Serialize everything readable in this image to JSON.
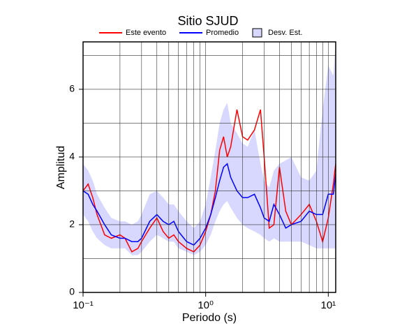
{
  "chart_data": {
    "type": "line",
    "title": "Sitio SJUD",
    "x_label": "Periodo (s)",
    "y_label": "Amplitud",
    "xscale": "log",
    "xlim": [
      0.1,
      11.5
    ],
    "ylim": [
      0,
      7.4
    ],
    "xticks": [
      {
        "value": 0.1,
        "label": "10⁻¹"
      },
      {
        "value": 1,
        "label": "10⁰"
      },
      {
        "value": 10,
        "label": "10¹"
      }
    ],
    "x_minor_ticks": [
      0.2,
      0.3,
      0.4,
      0.5,
      0.6,
      0.7,
      0.8,
      0.9,
      2,
      3,
      4,
      5,
      6,
      7,
      8,
      9
    ],
    "yticks": [
      0,
      2,
      4,
      6
    ],
    "y_minor_ticks": [
      1,
      3,
      5,
      7
    ],
    "grid": true,
    "x": [
      0.1,
      0.11,
      0.12,
      0.13,
      0.15,
      0.17,
      0.2,
      0.22,
      0.25,
      0.28,
      0.3,
      0.35,
      0.4,
      0.45,
      0.5,
      0.55,
      0.6,
      0.7,
      0.8,
      0.9,
      1.0,
      1.1,
      1.2,
      1.3,
      1.4,
      1.5,
      1.6,
      1.8,
      2.0,
      2.2,
      2.5,
      2.8,
      3.0,
      3.3,
      3.6,
      4.0,
      4.5,
      5.0,
      6.0,
      7.0,
      8.0,
      9.0,
      10.0,
      11.0,
      11.5
    ],
    "series": [
      {
        "name": "Este evento",
        "color": "#ff0000",
        "values": [
          3.0,
          3.2,
          2.8,
          2.3,
          1.7,
          1.6,
          1.7,
          1.6,
          1.2,
          1.3,
          1.5,
          1.9,
          2.2,
          1.8,
          1.6,
          1.7,
          1.5,
          1.3,
          1.2,
          1.4,
          1.8,
          2.3,
          3.0,
          4.2,
          4.6,
          4.0,
          4.3,
          5.4,
          4.6,
          4.5,
          4.8,
          5.4,
          4.0,
          1.9,
          2.0,
          3.7,
          2.4,
          2.0,
          2.3,
          2.6,
          2.1,
          1.5,
          2.2,
          3.2,
          3.8
        ]
      },
      {
        "name": "Promedio",
        "color": "#0000ff",
        "values": [
          3.0,
          2.9,
          2.6,
          2.4,
          2.0,
          1.7,
          1.6,
          1.6,
          1.5,
          1.5,
          1.6,
          2.1,
          2.3,
          2.1,
          2.0,
          2.1,
          1.8,
          1.5,
          1.4,
          1.6,
          1.9,
          2.3,
          2.8,
          3.3,
          3.7,
          3.8,
          3.4,
          3.0,
          2.8,
          2.8,
          2.9,
          2.5,
          2.2,
          2.1,
          2.6,
          2.3,
          1.9,
          2.0,
          2.1,
          2.4,
          2.3,
          2.3,
          2.9,
          2.9,
          3.5
        ]
      },
      {
        "name": "Desv. Est.",
        "color": "#d8d8ff",
        "lower": [
          2.3,
          2.1,
          1.8,
          1.6,
          1.4,
          1.3,
          1.3,
          1.3,
          1.1,
          1.1,
          1.2,
          1.5,
          1.7,
          1.6,
          1.5,
          1.5,
          1.3,
          1.2,
          1.1,
          1.2,
          1.4,
          1.7,
          2.1,
          2.4,
          2.6,
          2.7,
          2.5,
          2.2,
          2.0,
          1.9,
          1.8,
          1.7,
          1.6,
          1.5,
          1.6,
          1.5,
          1.5,
          1.5,
          1.5,
          1.4,
          1.3,
          1.3,
          1.3,
          1.3,
          1.3
        ],
        "upper": [
          3.8,
          3.6,
          3.3,
          2.9,
          2.5,
          2.2,
          2.1,
          2.1,
          2.0,
          2.1,
          2.3,
          2.9,
          3.0,
          2.8,
          2.6,
          2.6,
          2.4,
          2.1,
          1.9,
          2.1,
          2.6,
          3.4,
          4.2,
          5.0,
          5.4,
          5.6,
          5.0,
          4.7,
          4.4,
          4.3,
          4.8,
          3.8,
          3.3,
          3.1,
          3.6,
          3.8,
          3.9,
          4.0,
          3.4,
          3.3,
          3.6,
          5.4,
          6.7,
          6.4,
          7.4
        ]
      }
    ]
  }
}
